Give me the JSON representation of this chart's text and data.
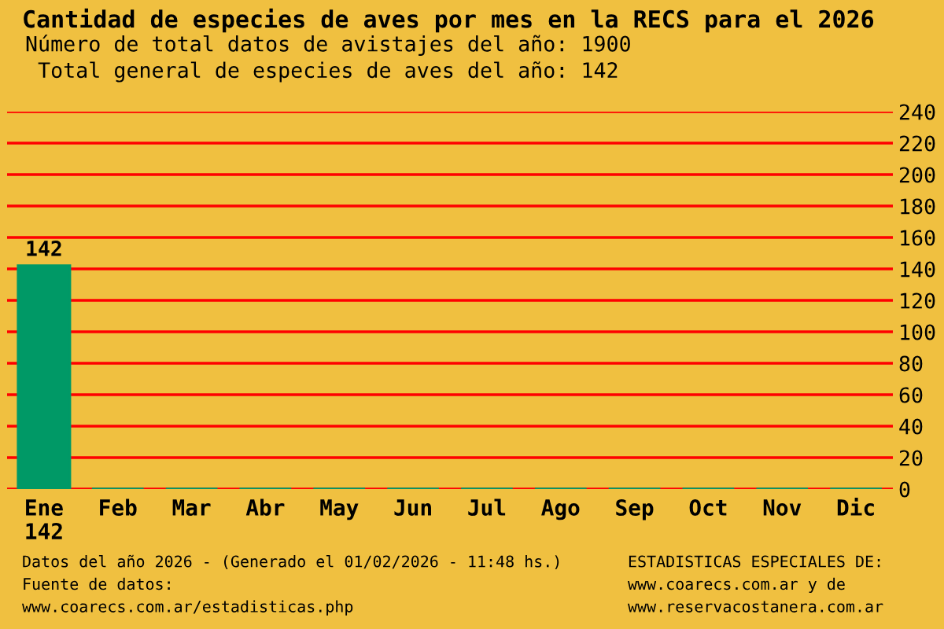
{
  "chart_data": {
    "type": "bar",
    "title": "Cantidad de especies de aves por mes en la RECS para el 2026",
    "subtitle": "Número de total datos de avistajes del año: 1900\n Total general de especies de aves del año: 142",
    "categories": [
      "Ene\n142",
      "Feb",
      "Mar",
      "Abr",
      "May",
      "Jun",
      "Jul",
      "Ago",
      "Sep",
      "Oct",
      "Nov",
      "Dic"
    ],
    "values": [
      142,
      0,
      0,
      0,
      0,
      0,
      0,
      0,
      0,
      0,
      0,
      0
    ],
    "value_labels": [
      "142",
      null,
      null,
      null,
      null,
      null,
      null,
      null,
      null,
      null,
      null,
      null
    ],
    "color": "#009966",
    "ylim": [
      0,
      240
    ],
    "yticks": [
      0,
      20,
      40,
      60,
      80,
      100,
      120,
      140,
      160,
      180,
      200,
      220,
      240
    ],
    "grid": "y",
    "annotations": [
      "Datos del año 2026 - (Generado el 01/02/2026 - 11:48 hs.)\nFuente de datos:\nwww.coarecs.com.ar/estadisticas.php",
      "ESTADISTICAS ESPECIALES DE:\nwww.coarecs.com.ar y de\nwww.reservacostanera.com.ar"
    ]
  }
}
